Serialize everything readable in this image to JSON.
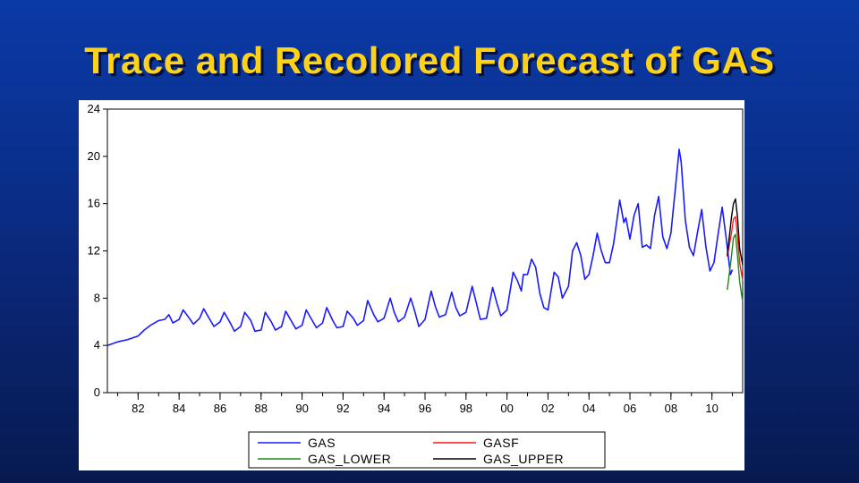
{
  "slide": {
    "title": "Trace and Recolored Forecast of GAS"
  },
  "chart_data": {
    "type": "line",
    "title": "",
    "xlabel": "",
    "ylabel": "",
    "x_range": [
      1980.5,
      2011.5
    ],
    "ylim": [
      0,
      24
    ],
    "y_ticks": [
      "0",
      "4",
      "8",
      "12",
      "16",
      "20",
      "24"
    ],
    "x_ticks": [
      "82",
      "84",
      "86",
      "88",
      "90",
      "92",
      "94",
      "96",
      "98",
      "00",
      "02",
      "04",
      "06",
      "08",
      "10"
    ],
    "grid": false,
    "legend_position": "bottom-center",
    "series": [
      {
        "name": "GAS",
        "color": "#1a1aff",
        "points": [
          [
            1980.5,
            4.0
          ],
          [
            1981.0,
            4.3
          ],
          [
            1981.5,
            4.5
          ],
          [
            1982.0,
            4.8
          ],
          [
            1982.3,
            5.3
          ],
          [
            1982.6,
            5.7
          ],
          [
            1983.0,
            6.1
          ],
          [
            1983.3,
            6.2
          ],
          [
            1983.5,
            6.6
          ],
          [
            1983.7,
            5.9
          ],
          [
            1984.0,
            6.2
          ],
          [
            1984.2,
            7.0
          ],
          [
            1984.5,
            6.3
          ],
          [
            1984.7,
            5.8
          ],
          [
            1985.0,
            6.3
          ],
          [
            1985.2,
            7.1
          ],
          [
            1985.5,
            6.2
          ],
          [
            1985.7,
            5.6
          ],
          [
            1986.0,
            6.0
          ],
          [
            1986.2,
            6.8
          ],
          [
            1986.5,
            5.9
          ],
          [
            1986.7,
            5.2
          ],
          [
            1987.0,
            5.6
          ],
          [
            1987.2,
            6.8
          ],
          [
            1987.5,
            6.1
          ],
          [
            1987.7,
            5.2
          ],
          [
            1988.0,
            5.3
          ],
          [
            1988.2,
            6.8
          ],
          [
            1988.5,
            6.0
          ],
          [
            1988.7,
            5.3
          ],
          [
            1989.0,
            5.6
          ],
          [
            1989.2,
            6.9
          ],
          [
            1989.5,
            6.0
          ],
          [
            1989.7,
            5.4
          ],
          [
            1990.0,
            5.7
          ],
          [
            1990.2,
            7.0
          ],
          [
            1990.5,
            6.1
          ],
          [
            1990.7,
            5.5
          ],
          [
            1991.0,
            5.9
          ],
          [
            1991.2,
            7.2
          ],
          [
            1991.5,
            6.1
          ],
          [
            1991.7,
            5.5
          ],
          [
            1992.0,
            5.6
          ],
          [
            1992.2,
            6.9
          ],
          [
            1992.5,
            6.3
          ],
          [
            1992.7,
            5.7
          ],
          [
            1993.0,
            6.1
          ],
          [
            1993.2,
            7.8
          ],
          [
            1993.5,
            6.6
          ],
          [
            1993.7,
            6.0
          ],
          [
            1994.0,
            6.3
          ],
          [
            1994.3,
            8.0
          ],
          [
            1994.5,
            6.8
          ],
          [
            1994.7,
            6.0
          ],
          [
            1995.0,
            6.4
          ],
          [
            1995.3,
            8.0
          ],
          [
            1995.5,
            6.9
          ],
          [
            1995.7,
            5.6
          ],
          [
            1996.0,
            6.2
          ],
          [
            1996.3,
            8.6
          ],
          [
            1996.5,
            7.3
          ],
          [
            1996.7,
            6.4
          ],
          [
            1997.0,
            6.6
          ],
          [
            1997.3,
            8.5
          ],
          [
            1997.5,
            7.2
          ],
          [
            1997.7,
            6.5
          ],
          [
            1998.0,
            6.8
          ],
          [
            1998.3,
            9.0
          ],
          [
            1998.5,
            7.6
          ],
          [
            1998.7,
            6.2
          ],
          [
            1999.0,
            6.3
          ],
          [
            1999.3,
            8.9
          ],
          [
            1999.5,
            7.6
          ],
          [
            1999.7,
            6.5
          ],
          [
            2000.0,
            7.0
          ],
          [
            2000.3,
            10.2
          ],
          [
            2000.5,
            9.5
          ],
          [
            2000.7,
            8.6
          ],
          [
            2000.8,
            10.0
          ],
          [
            2001.0,
            10.0
          ],
          [
            2001.2,
            11.3
          ],
          [
            2001.4,
            10.6
          ],
          [
            2001.6,
            8.4
          ],
          [
            2001.8,
            7.2
          ],
          [
            2002.0,
            7.0
          ],
          [
            2002.3,
            10.2
          ],
          [
            2002.5,
            9.8
          ],
          [
            2002.7,
            8.0
          ],
          [
            2003.0,
            9.0
          ],
          [
            2003.2,
            12.0
          ],
          [
            2003.4,
            12.7
          ],
          [
            2003.6,
            11.6
          ],
          [
            2003.8,
            9.6
          ],
          [
            2004.0,
            10.0
          ],
          [
            2004.2,
            11.6
          ],
          [
            2004.4,
            13.5
          ],
          [
            2004.6,
            12.0
          ],
          [
            2004.8,
            11.0
          ],
          [
            2005.0,
            11.0
          ],
          [
            2005.2,
            12.6
          ],
          [
            2005.5,
            16.3
          ],
          [
            2005.7,
            14.4
          ],
          [
            2005.8,
            14.8
          ],
          [
            2006.0,
            13.0
          ],
          [
            2006.2,
            15.0
          ],
          [
            2006.4,
            16.0
          ],
          [
            2006.6,
            12.3
          ],
          [
            2006.8,
            12.5
          ],
          [
            2007.0,
            12.2
          ],
          [
            2007.2,
            15.0
          ],
          [
            2007.4,
            16.6
          ],
          [
            2007.6,
            13.2
          ],
          [
            2007.8,
            12.2
          ],
          [
            2008.0,
            13.5
          ],
          [
            2008.2,
            17.0
          ],
          [
            2008.4,
            20.6
          ],
          [
            2008.5,
            19.5
          ],
          [
            2008.7,
            14.6
          ],
          [
            2008.9,
            12.3
          ],
          [
            2009.1,
            11.6
          ],
          [
            2009.3,
            13.6
          ],
          [
            2009.5,
            15.5
          ],
          [
            2009.7,
            12.4
          ],
          [
            2009.9,
            10.3
          ],
          [
            2010.1,
            11.0
          ],
          [
            2010.3,
            13.4
          ],
          [
            2010.5,
            15.7
          ],
          [
            2010.7,
            13.0
          ],
          [
            2010.9,
            10.0
          ],
          [
            2011.0,
            10.4
          ]
        ]
      },
      {
        "name": "GASF",
        "color": "#ff1a1a",
        "points": [
          [
            2010.75,
            11.5
          ],
          [
            2010.95,
            13.5
          ],
          [
            2011.05,
            14.7
          ],
          [
            2011.15,
            14.9
          ],
          [
            2011.25,
            13.2
          ],
          [
            2011.35,
            11.0
          ],
          [
            2011.5,
            9.5
          ]
        ]
      },
      {
        "name": "GAS_LOWER",
        "color": "#1a8a1a",
        "points": [
          [
            2010.75,
            8.7
          ],
          [
            2010.95,
            11.5
          ],
          [
            2011.05,
            13.1
          ],
          [
            2011.15,
            13.4
          ],
          [
            2011.25,
            11.5
          ],
          [
            2011.35,
            9.4
          ],
          [
            2011.5,
            7.7
          ]
        ]
      },
      {
        "name": "GAS_UPPER",
        "color": "#000000",
        "points": [
          [
            2010.75,
            11.6
          ],
          [
            2010.95,
            14.8
          ],
          [
            2011.05,
            16.0
          ],
          [
            2011.15,
            16.4
          ],
          [
            2011.25,
            14.8
          ],
          [
            2011.35,
            12.2
          ],
          [
            2011.5,
            10.8
          ]
        ]
      }
    ]
  }
}
